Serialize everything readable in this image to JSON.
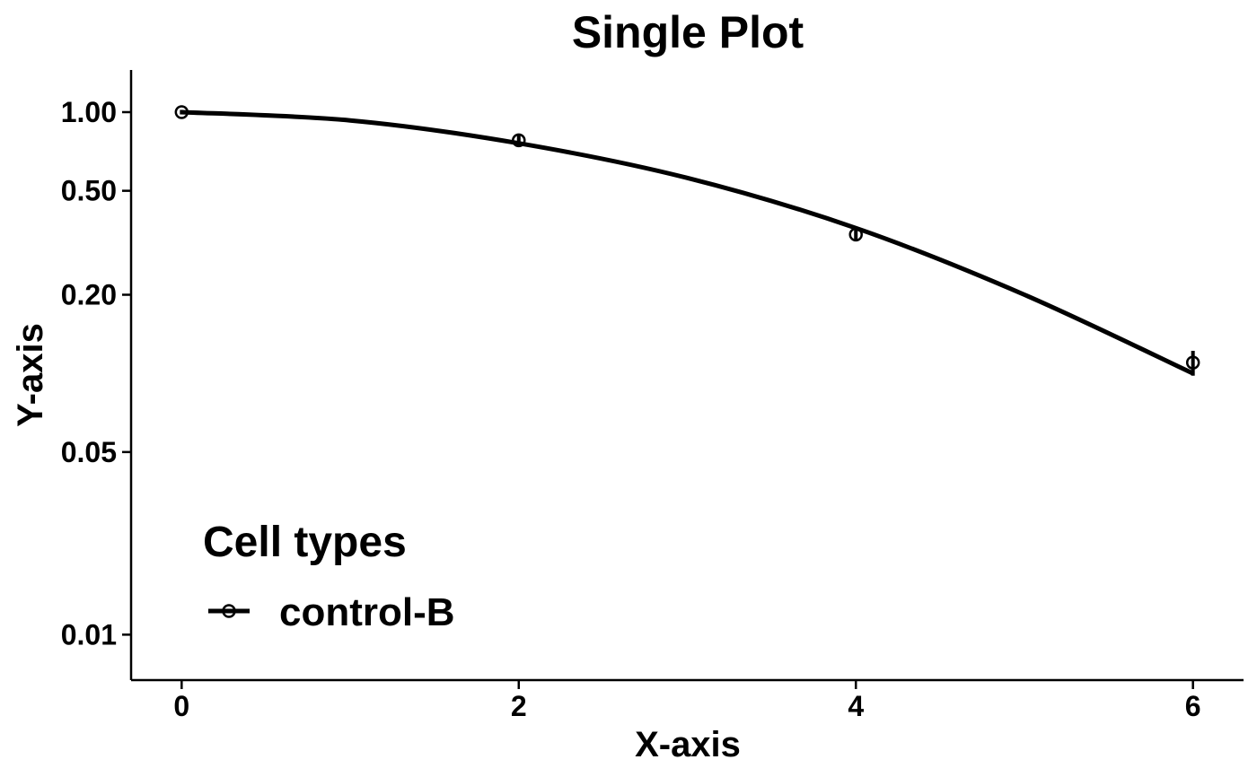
{
  "chart_data": {
    "type": "line",
    "title": "Single Plot",
    "xlabel": "X-axis",
    "ylabel": "Y-axis",
    "xlim": [
      -0.3,
      6.3
    ],
    "ylim": [
      0.0067,
      1.45
    ],
    "yscale": "log",
    "x_ticks": [
      0,
      2,
      4,
      6
    ],
    "x_tick_labels": [
      "0",
      "2",
      "4",
      "6"
    ],
    "y_ticks": [
      1.0,
      0.5,
      0.2,
      0.05,
      0.01
    ],
    "y_tick_labels": [
      "1.00",
      "0.50",
      "0.20",
      "0.05",
      "0.01"
    ],
    "grid": false,
    "legend": {
      "title": "Cell types",
      "placement": "bottom-left",
      "entries": [
        "control-B"
      ]
    },
    "series": [
      {
        "name": "control-B",
        "color": "#000000",
        "points": [
          {
            "x": 0,
            "y": 1.0,
            "err": 0.02
          },
          {
            "x": 2,
            "y": 0.78,
            "err": 0.035
          },
          {
            "x": 4,
            "y": 0.34,
            "err": 0.02
          },
          {
            "x": 6,
            "y": 0.11,
            "err": 0.012
          }
        ],
        "fit": {
          "x": [
            0,
            1,
            2,
            3,
            4,
            5,
            6
          ],
          "y": [
            1.0,
            0.93,
            0.76,
            0.56,
            0.36,
            0.2,
            0.1
          ]
        }
      }
    ]
  }
}
